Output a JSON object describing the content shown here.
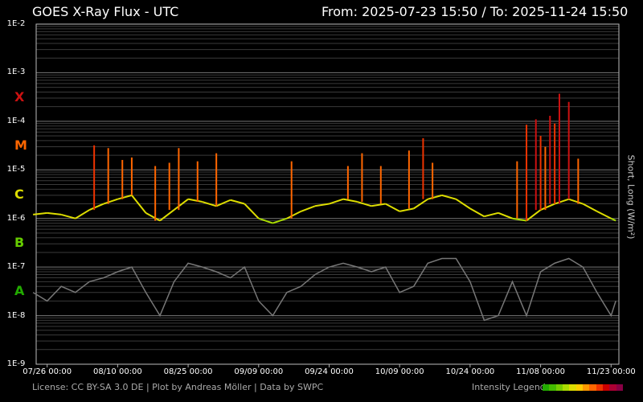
{
  "header": {
    "title": "GOES X-Ray Flux - UTC",
    "range": "From: 2025-07-23 15:50  /  To: 2025-11-24 15:50"
  },
  "footer": {
    "credits": "License: CC BY-SA 3.0 DE | Plot by Andreas Möller | Data by SWPC",
    "legend_label": "Intensity Legend",
    "legend_colors": [
      "#22aa00",
      "#44bb00",
      "#77cc00",
      "#aadd00",
      "#dddd00",
      "#ffcc00",
      "#ff9900",
      "#ff6600",
      "#ee3300",
      "#cc0000",
      "#aa0033",
      "#880044"
    ]
  },
  "chart_data": {
    "type": "line",
    "title": "GOES X-Ray Flux - UTC",
    "ylabel": "Short, Long (W/m²)",
    "yscale": "log",
    "ylim": [
      1e-09,
      0.01
    ],
    "y_ticks": [
      "1E-2",
      "1E-3",
      "1E-4",
      "1E-5",
      "1E-6",
      "1E-7",
      "1E-8",
      "1E-9"
    ],
    "flare_classes": [
      {
        "label": "X",
        "color": "#cc1111",
        "level": 0.0001
      },
      {
        "label": "M",
        "color": "#ff6600",
        "level": 1e-05
      },
      {
        "label": "C",
        "color": "#dddd00",
        "level": 1e-06
      },
      {
        "label": "B",
        "color": "#66cc00",
        "level": 1e-07
      },
      {
        "label": "A",
        "color": "#22aa00",
        "level": 1e-08
      }
    ],
    "x_ticks": [
      "07/26 00:00",
      "08/10 00:00",
      "08/25 00:00",
      "09/09 00:00",
      "09/24 00:00",
      "10/09 00:00",
      "10/24 00:00",
      "11/08 00:00",
      "11/23 00:00"
    ],
    "grid": true,
    "series": [
      {
        "name": "Long",
        "color_by_intensity": true,
        "x": [
          "07/23",
          "07/26",
          "07/29",
          "08/01",
          "08/04",
          "08/07",
          "08/10",
          "08/13",
          "08/16",
          "08/19",
          "08/22",
          "08/25",
          "08/28",
          "08/31",
          "09/03",
          "09/06",
          "09/09",
          "09/12",
          "09/15",
          "09/18",
          "09/21",
          "09/24",
          "09/27",
          "09/30",
          "10/03",
          "10/06",
          "10/09",
          "10/12",
          "10/15",
          "10/18",
          "10/21",
          "10/24",
          "10/27",
          "10/30",
          "11/02",
          "11/05",
          "11/08",
          "11/11",
          "11/14",
          "11/17",
          "11/20",
          "11/23",
          "11/24"
        ],
        "values": [
          1.2e-06,
          1.3e-06,
          1.2e-06,
          1e-06,
          1.5e-06,
          2e-06,
          2.5e-06,
          3e-06,
          1.3e-06,
          9e-07,
          1.5e-06,
          2.5e-06,
          2.2e-06,
          1.8e-06,
          2.4e-06,
          2e-06,
          1e-06,
          8e-07,
          1e-06,
          1.4e-06,
          1.8e-06,
          2e-06,
          2.5e-06,
          2.2e-06,
          1.8e-06,
          2e-06,
          1.4e-06,
          1.6e-06,
          2.5e-06,
          3e-06,
          2.5e-06,
          1.6e-06,
          1.1e-06,
          1.3e-06,
          1e-06,
          9e-07,
          1.5e-06,
          2e-06,
          2.5e-06,
          2e-06,
          1.4e-06,
          1e-06,
          9e-07
        ]
      },
      {
        "name": "Short",
        "color": "#777777",
        "x": [
          "07/23",
          "07/26",
          "07/29",
          "08/01",
          "08/04",
          "08/07",
          "08/10",
          "08/13",
          "08/16",
          "08/19",
          "08/22",
          "08/25",
          "08/28",
          "08/31",
          "09/03",
          "09/06",
          "09/09",
          "09/12",
          "09/15",
          "09/18",
          "09/21",
          "09/24",
          "09/27",
          "09/30",
          "10/03",
          "10/06",
          "10/09",
          "10/12",
          "10/15",
          "10/18",
          "10/21",
          "10/24",
          "10/27",
          "10/30",
          "11/02",
          "11/05",
          "11/08",
          "11/11",
          "11/14",
          "11/17",
          "11/20",
          "11/23",
          "11/24"
        ],
        "values": [
          3e-08,
          2e-08,
          4e-08,
          3e-08,
          5e-08,
          6e-08,
          8e-08,
          1e-07,
          3e-08,
          1e-08,
          5e-08,
          1.2e-07,
          1e-07,
          8e-08,
          6e-08,
          1e-07,
          2e-08,
          1e-08,
          3e-08,
          4e-08,
          7e-08,
          1e-07,
          1.2e-07,
          1e-07,
          8e-08,
          1e-07,
          3e-08,
          4e-08,
          1.2e-07,
          1.5e-07,
          1.5e-07,
          5e-08,
          8e-09,
          1e-08,
          5e-08,
          1e-08,
          8e-08,
          1.2e-07,
          1.5e-07,
          1e-07,
          3e-08,
          1e-08,
          2e-08
        ]
      }
    ],
    "flares": [
      {
        "date": "08/05",
        "peak": 3.2e-05
      },
      {
        "date": "08/08",
        "peak": 2.8e-05
      },
      {
        "date": "08/11",
        "peak": 1.6e-05
      },
      {
        "date": "08/13",
        "peak": 1.8e-05
      },
      {
        "date": "08/18",
        "peak": 1.2e-05
      },
      {
        "date": "08/21",
        "peak": 1.4e-05
      },
      {
        "date": "08/23",
        "peak": 2.8e-05
      },
      {
        "date": "08/27",
        "peak": 1.5e-05
      },
      {
        "date": "08/31",
        "peak": 2.2e-05
      },
      {
        "date": "09/16",
        "peak": 1.5e-05
      },
      {
        "date": "09/28",
        "peak": 1.2e-05
      },
      {
        "date": "10/01",
        "peak": 2.2e-05
      },
      {
        "date": "10/05",
        "peak": 1.2e-05
      },
      {
        "date": "10/11",
        "peak": 2.5e-05
      },
      {
        "date": "10/14",
        "peak": 4.5e-05
      },
      {
        "date": "10/16",
        "peak": 1.4e-05
      },
      {
        "date": "11/03",
        "peak": 1.5e-05
      },
      {
        "date": "11/05",
        "peak": 8.5e-05
      },
      {
        "date": "11/07",
        "peak": 0.00011
      },
      {
        "date": "11/08",
        "peak": 5e-05
      },
      {
        "date": "11/09",
        "peak": 3e-05
      },
      {
        "date": "11/10",
        "peak": 0.00013
      },
      {
        "date": "11/11",
        "peak": 9e-05
      },
      {
        "date": "11/12",
        "peak": 0.00037
      },
      {
        "date": "11/14",
        "peak": 0.00025
      },
      {
        "date": "11/16",
        "peak": 1.7e-05
      }
    ]
  }
}
